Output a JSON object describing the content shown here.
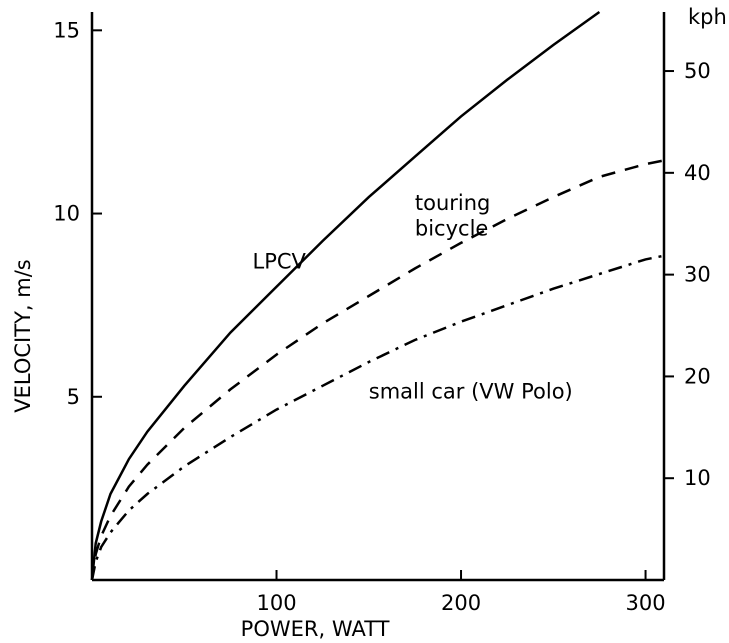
{
  "chart_data": {
    "type": "line",
    "title": "",
    "xlabel": "POWER, WATT",
    "ylabel": "VELOCITY, m/s",
    "y2label": "kph",
    "xlim": [
      0,
      310
    ],
    "ylim": [
      0,
      15.5
    ],
    "y2lim": [
      0,
      55.8
    ],
    "x_ticks": [
      100,
      200,
      300
    ],
    "y_ticks": [
      5,
      10,
      15
    ],
    "y2_ticks": [
      10,
      20,
      30,
      40,
      50
    ],
    "grid": false,
    "legend": "none",
    "series": [
      {
        "name": "LPCV",
        "style": "solid",
        "x": [
          0,
          2,
          5,
          10,
          20,
          30,
          50,
          75,
          100,
          125,
          150,
          175,
          200,
          225,
          250,
          275
        ],
        "y": [
          0,
          1.0,
          1.6,
          2.35,
          3.3,
          4.05,
          5.3,
          6.75,
          8.0,
          9.25,
          10.45,
          11.55,
          12.65,
          13.65,
          14.6,
          15.5
        ]
      },
      {
        "name": "touring bicycle",
        "style": "dashed",
        "x": [
          0,
          2,
          5,
          10,
          20,
          30,
          50,
          75,
          100,
          125,
          150,
          175,
          200,
          225,
          250,
          275,
          300,
          310
        ],
        "y": [
          0,
          0.7,
          1.2,
          1.75,
          2.55,
          3.15,
          4.15,
          5.2,
          6.15,
          7.0,
          7.75,
          8.5,
          9.2,
          9.85,
          10.45,
          11.0,
          11.35,
          11.45
        ]
      },
      {
        "name": "small car (VW Polo)",
        "style": "dashdot",
        "x": [
          0,
          2,
          5,
          10,
          20,
          30,
          50,
          75,
          100,
          125,
          150,
          175,
          200,
          225,
          250,
          275,
          300,
          310
        ],
        "y": [
          0,
          0.5,
          0.9,
          1.3,
          1.9,
          2.35,
          3.1,
          3.9,
          4.65,
          5.3,
          5.95,
          6.55,
          7.05,
          7.5,
          7.95,
          8.35,
          8.75,
          8.85
        ]
      }
    ],
    "annotations": [
      {
        "text": "LPCV",
        "x": 87,
        "y": 8.5
      },
      {
        "text": "touring",
        "x": 175,
        "y": 10.1
      },
      {
        "text": "bicycle",
        "x": 175,
        "y": 9.4
      },
      {
        "text": "small car (VW Polo)",
        "x": 150,
        "y": 4.95
      }
    ]
  }
}
